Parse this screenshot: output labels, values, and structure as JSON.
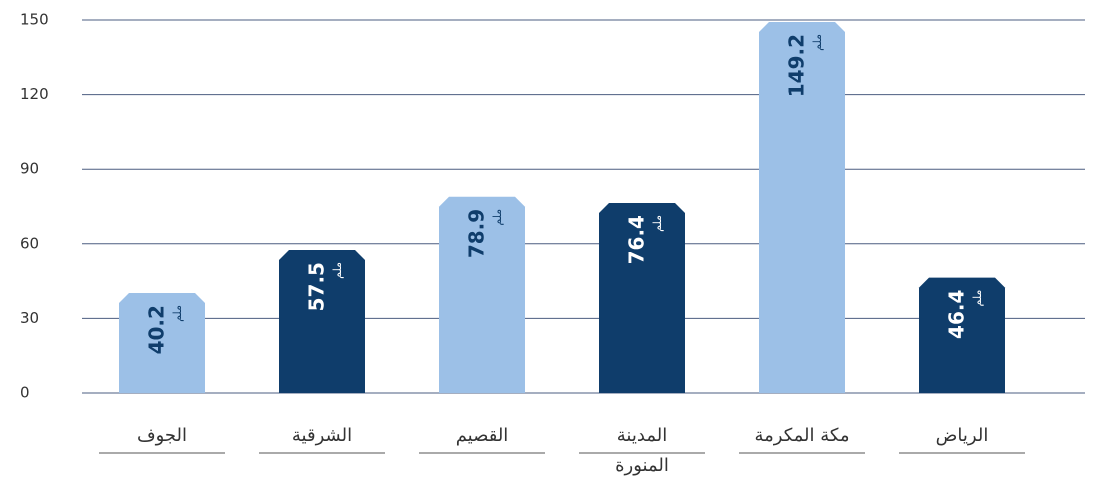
{
  "chart_data": {
    "type": "bar",
    "categories": [
      "الجوف",
      "الشرقية",
      "القصيم",
      "المدينة المنورة",
      "مكة المكرمة",
      "الرياض"
    ],
    "values": [
      40.2,
      57.5,
      78.9,
      76.4,
      149.2,
      46.4
    ],
    "colors": [
      "#9cc0e7",
      "#0f3d6b",
      "#9cc0e7",
      "#0f3d6b",
      "#9cc0e7",
      "#0f3d6b"
    ],
    "label_colors": [
      "#0f3d6b",
      "#ffffff",
      "#0f3d6b",
      "#ffffff",
      "#0f3d6b",
      "#ffffff"
    ],
    "unit": "ملم",
    "ylim": [
      0,
      150
    ],
    "yticks": [
      0,
      30,
      60,
      90,
      120,
      150
    ],
    "grid": true
  }
}
